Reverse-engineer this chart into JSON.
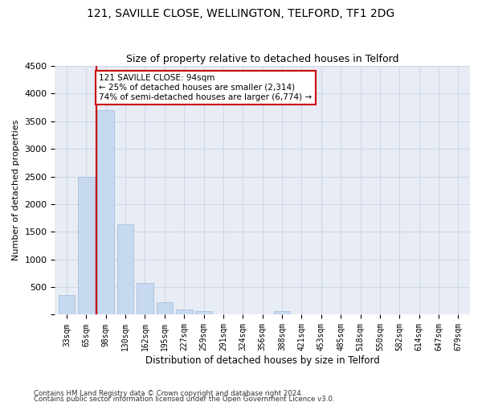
{
  "title1": "121, SAVILLE CLOSE, WELLINGTON, TELFORD, TF1 2DG",
  "title2": "Size of property relative to detached houses in Telford",
  "xlabel": "Distribution of detached houses by size in Telford",
  "ylabel": "Number of detached properties",
  "categories": [
    "33sqm",
    "65sqm",
    "98sqm",
    "130sqm",
    "162sqm",
    "195sqm",
    "227sqm",
    "259sqm",
    "291sqm",
    "324sqm",
    "356sqm",
    "388sqm",
    "421sqm",
    "453sqm",
    "485sqm",
    "518sqm",
    "550sqm",
    "582sqm",
    "614sqm",
    "647sqm",
    "679sqm"
  ],
  "values": [
    350,
    2500,
    3700,
    1640,
    580,
    220,
    100,
    60,
    0,
    0,
    0,
    60,
    0,
    0,
    0,
    0,
    0,
    0,
    0,
    0,
    0
  ],
  "bar_color": "#c6d9f0",
  "bar_edgecolor": "#a0b8d8",
  "annotation_text": "121 SAVILLE CLOSE: 94sqm\n← 25% of detached houses are smaller (2,314)\n74% of semi-detached houses are larger (6,774) →",
  "annotation_box_color": "#ffffff",
  "annotation_box_edgecolor": "#cc0000",
  "vline_color": "#cc0000",
  "ylim": [
    0,
    4500
  ],
  "yticks": [
    0,
    500,
    1000,
    1500,
    2000,
    2500,
    3000,
    3500,
    4000,
    4500
  ],
  "grid_color": "#d0d8e8",
  "background_color": "#e8edf5",
  "footer_line1": "Contains HM Land Registry data © Crown copyright and database right 2024.",
  "footer_line2": "Contains public sector information licensed under the Open Government Licence v3.0.",
  "title_fontsize": 10,
  "subtitle_fontsize": 9,
  "xlabel_fontsize": 8.5,
  "ylabel_fontsize": 8
}
